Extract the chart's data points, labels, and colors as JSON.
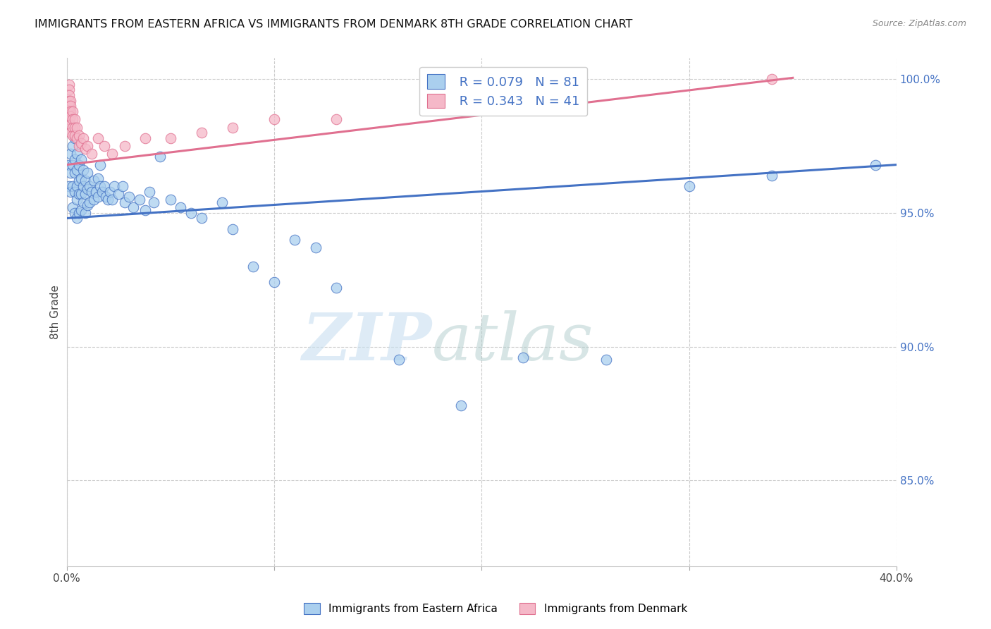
{
  "title": "IMMIGRANTS FROM EASTERN AFRICA VS IMMIGRANTS FROM DENMARK 8TH GRADE CORRELATION CHART",
  "source": "Source: ZipAtlas.com",
  "ylabel": "8th Grade",
  "xlim": [
    0.0,
    0.4
  ],
  "ylim": [
    0.818,
    1.008
  ],
  "xticks": [
    0.0,
    0.1,
    0.2,
    0.3,
    0.4
  ],
  "xtick_labels": [
    "0.0%",
    "",
    "",
    "",
    "40.0%"
  ],
  "ytick_right": [
    1.0,
    0.95,
    0.9,
    0.85
  ],
  "ytick_right_labels": [
    "100.0%",
    "95.0%",
    "90.0%",
    "85.0%"
  ],
  "legend_R1": "R = 0.079",
  "legend_N1": "N = 81",
  "legend_R2": "R = 0.343",
  "legend_N2": "N = 41",
  "legend_label1": "Immigrants from Eastern Africa",
  "legend_label2": "Immigrants from Denmark",
  "color_blue": "#aacfee",
  "color_pink": "#f5b8c8",
  "color_blue_line": "#4472c4",
  "color_pink_line": "#e07090",
  "watermark_zip": "ZIP",
  "watermark_atlas": "atlas",
  "blue_scatter_x": [
    0.001,
    0.001,
    0.002,
    0.002,
    0.002,
    0.003,
    0.003,
    0.003,
    0.003,
    0.004,
    0.004,
    0.004,
    0.004,
    0.004,
    0.005,
    0.005,
    0.005,
    0.005,
    0.005,
    0.006,
    0.006,
    0.006,
    0.006,
    0.007,
    0.007,
    0.007,
    0.007,
    0.008,
    0.008,
    0.008,
    0.009,
    0.009,
    0.009,
    0.01,
    0.01,
    0.01,
    0.011,
    0.011,
    0.012,
    0.013,
    0.013,
    0.014,
    0.015,
    0.015,
    0.016,
    0.016,
    0.017,
    0.018,
    0.019,
    0.02,
    0.021,
    0.022,
    0.023,
    0.025,
    0.027,
    0.028,
    0.03,
    0.032,
    0.035,
    0.038,
    0.04,
    0.042,
    0.045,
    0.05,
    0.055,
    0.06,
    0.065,
    0.075,
    0.08,
    0.09,
    0.1,
    0.11,
    0.12,
    0.13,
    0.16,
    0.19,
    0.22,
    0.26,
    0.3,
    0.34,
    0.39
  ],
  "blue_scatter_y": [
    0.968,
    0.96,
    0.972,
    0.965,
    0.958,
    0.975,
    0.968,
    0.96,
    0.952,
    0.978,
    0.97,
    0.965,
    0.958,
    0.95,
    0.972,
    0.966,
    0.96,
    0.955,
    0.948,
    0.968,
    0.962,
    0.957,
    0.95,
    0.97,
    0.963,
    0.957,
    0.951,
    0.966,
    0.96,
    0.954,
    0.962,
    0.957,
    0.95,
    0.965,
    0.959,
    0.953,
    0.96,
    0.954,
    0.958,
    0.962,
    0.955,
    0.958,
    0.963,
    0.956,
    0.968,
    0.96,
    0.958,
    0.96,
    0.956,
    0.955,
    0.958,
    0.955,
    0.96,
    0.957,
    0.96,
    0.954,
    0.956,
    0.952,
    0.955,
    0.951,
    0.958,
    0.954,
    0.971,
    0.955,
    0.952,
    0.95,
    0.948,
    0.954,
    0.944,
    0.93,
    0.924,
    0.94,
    0.937,
    0.922,
    0.895,
    0.878,
    0.896,
    0.895,
    0.96,
    0.964,
    0.968
  ],
  "pink_scatter_x": [
    0.001,
    0.001,
    0.001,
    0.001,
    0.001,
    0.001,
    0.001,
    0.002,
    0.002,
    0.002,
    0.002,
    0.002,
    0.002,
    0.003,
    0.003,
    0.003,
    0.003,
    0.004,
    0.004,
    0.004,
    0.005,
    0.005,
    0.006,
    0.006,
    0.007,
    0.008,
    0.009,
    0.01,
    0.012,
    0.015,
    0.018,
    0.022,
    0.028,
    0.038,
    0.05,
    0.065,
    0.08,
    0.1,
    0.13,
    0.2,
    0.34
  ],
  "pink_scatter_y": [
    0.998,
    0.996,
    0.994,
    0.992,
    0.99,
    0.988,
    0.985,
    0.992,
    0.99,
    0.988,
    0.986,
    0.983,
    0.98,
    0.988,
    0.985,
    0.982,
    0.979,
    0.985,
    0.982,
    0.979,
    0.982,
    0.978,
    0.979,
    0.975,
    0.976,
    0.978,
    0.974,
    0.975,
    0.972,
    0.978,
    0.975,
    0.972,
    0.975,
    0.978,
    0.978,
    0.98,
    0.982,
    0.985,
    0.985,
    0.992,
    1.0
  ],
  "blue_line_x": [
    0.0,
    0.4
  ],
  "blue_line_y": [
    0.948,
    0.968
  ],
  "pink_line_x": [
    0.0,
    0.35
  ],
  "pink_line_y": [
    0.968,
    1.0005
  ]
}
